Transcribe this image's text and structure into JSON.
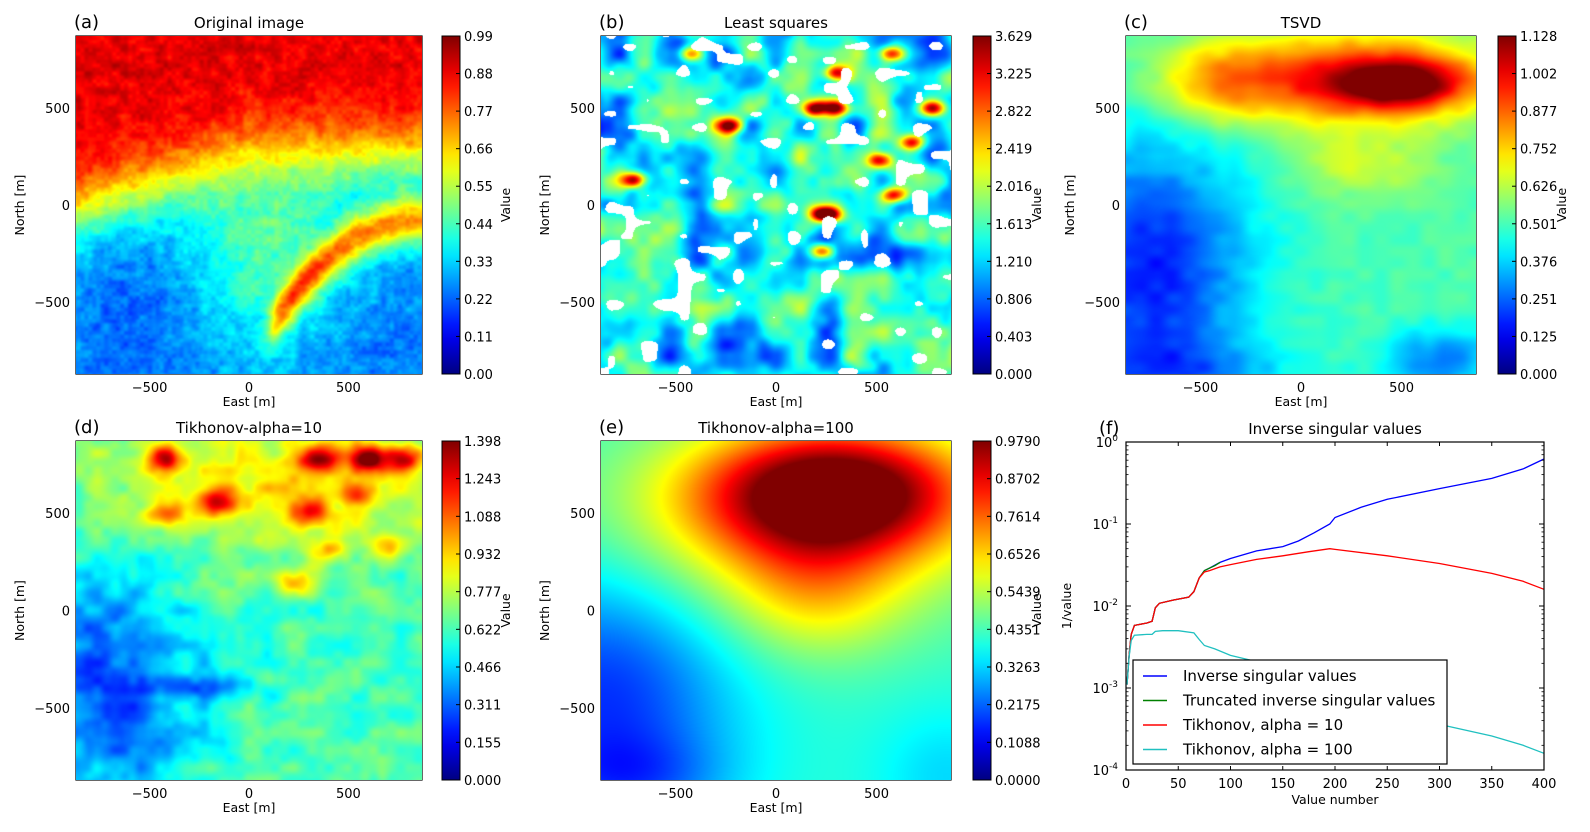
{
  "figure": {
    "panels": [
      {
        "id": "a",
        "panel_label": "(a)",
        "title": "Original image",
        "xlabel": "East [m]",
        "ylabel": "North [m]",
        "colorbar_label": "Value",
        "colorbar_ticks": [
          "0.00",
          "0.11",
          "0.22",
          "0.33",
          "0.44",
          "0.55",
          "0.66",
          "0.77",
          "0.88",
          "0.99"
        ],
        "vmin": 0.0,
        "vmax": 0.99,
        "pattern": "original"
      },
      {
        "id": "b",
        "panel_label": "(b)",
        "title": "Least squares",
        "xlabel": "East [m]",
        "ylabel": "North [m]",
        "colorbar_label": "Value",
        "colorbar_ticks": [
          "0.000",
          "0.403",
          "0.806",
          "1.210",
          "1.613",
          "2.016",
          "2.419",
          "2.822",
          "3.225",
          "3.629"
        ],
        "vmin": 0.0,
        "vmax": 3.629,
        "pattern": "leastsquares"
      },
      {
        "id": "c",
        "panel_label": "(c)",
        "title": "TSVD",
        "xlabel": "East [m]",
        "ylabel": "North [m]",
        "colorbar_label": "Value",
        "colorbar_ticks": [
          "0.000",
          "0.125",
          "0.251",
          "0.376",
          "0.501",
          "0.626",
          "0.752",
          "0.877",
          "1.002",
          "1.128"
        ],
        "vmin": 0.0,
        "vmax": 1.128,
        "pattern": "tsvd"
      },
      {
        "id": "d",
        "panel_label": "(d)",
        "title": "Tikhonov-alpha=10",
        "xlabel": "East [m]",
        "ylabel": "North [m]",
        "colorbar_label": "Value",
        "colorbar_ticks": [
          "0.000",
          "0.155",
          "0.311",
          "0.466",
          "0.622",
          "0.777",
          "0.932",
          "1.088",
          "1.243",
          "1.398"
        ],
        "vmin": 0.0,
        "vmax": 1.398,
        "pattern": "tik10"
      },
      {
        "id": "e",
        "panel_label": "(e)",
        "title": "Tikhonov-alpha=100",
        "xlabel": "East [m]",
        "ylabel": "North [m]",
        "colorbar_label": "Value",
        "colorbar_ticks": [
          "0.0000",
          "0.1088",
          "0.2175",
          "0.3263",
          "0.4351",
          "0.5439",
          "0.6526",
          "0.7614",
          "0.8702",
          "0.9790"
        ],
        "vmin": 0.0,
        "vmax": 0.979,
        "pattern": "tik100"
      }
    ],
    "map_axes": {
      "x_ticks": [
        "−500",
        "0",
        "500"
      ],
      "x_tick_values": [
        -500,
        0,
        500
      ],
      "y_ticks": [
        "−500",
        "0",
        "500"
      ],
      "y_tick_values": [
        -500,
        0,
        500
      ],
      "xlim": [
        -870,
        870
      ],
      "ylim": [
        -870,
        870
      ]
    }
  },
  "chart_data": [
    {
      "type": "heatmap",
      "title": "Original image",
      "xlabel": "East [m]",
      "ylabel": "North [m]",
      "xlim": [
        -870,
        870
      ],
      "ylim": [
        -870,
        870
      ],
      "colorbar": {
        "label": "Value",
        "min": 0.0,
        "max": 0.99,
        "colormap": "jet"
      },
      "description": "High values (0.8-0.99) across the north (y>300); low values (~0.25) in the south-west; a curved band of high values (0.7-0.85) from east ~800,y~-100 to x~250,y~-550"
    },
    {
      "type": "heatmap",
      "title": "Least squares",
      "xlabel": "East [m]",
      "ylabel": "North [m]",
      "xlim": [
        -870,
        870
      ],
      "ylim": [
        -870,
        870
      ],
      "colorbar": {
        "label": "Value",
        "min": 0.0,
        "max": 3.629,
        "colormap": "jet"
      },
      "description": "Noisy triangulated field mostly 0.4-1.6 with isolated peaks up to ~3.6 and white (masked/negative) patches"
    },
    {
      "type": "heatmap",
      "title": "TSVD",
      "xlabel": "East [m]",
      "ylabel": "North [m]",
      "xlim": [
        -870,
        870
      ],
      "ylim": [
        -870,
        870
      ],
      "colorbar": {
        "label": "Value",
        "min": 0.0,
        "max": 1.128,
        "colormap": "jet"
      },
      "description": "Maximum ~1.1 near (500, 600); broad high band y 400-800; low (~0.2) in west/south-west"
    },
    {
      "type": "heatmap",
      "title": "Tikhonov-alpha=10",
      "xlabel": "East [m]",
      "ylabel": "North [m]",
      "xlim": [
        -870,
        870
      ],
      "ylim": [
        -870,
        870
      ],
      "colorbar": {
        "label": "Value",
        "min": 0.0,
        "max": 1.398,
        "colormap": "jet"
      },
      "description": "Patchy field, peaks ~1.3 along y~800 near x=-400, 300, 600; low ~0.2 in south-west"
    },
    {
      "type": "heatmap",
      "title": "Tikhonov-alpha=100",
      "xlabel": "East [m]",
      "ylabel": "North [m]",
      "xlim": [
        -870,
        870
      ],
      "ylim": [
        -870,
        870
      ],
      "colorbar": {
        "label": "Value",
        "min": 0.0,
        "max": 0.979,
        "colormap": "jet"
      },
      "description": "Smooth field with maximum ~0.98 near (300, 600); decreasing toward south-west minimum ~0.1"
    },
    {
      "type": "line",
      "title": "Inverse singular values",
      "xlabel": "Value number",
      "ylabel": "1/value",
      "yscale": "log",
      "xlim": [
        0,
        400
      ],
      "ylim": [
        0.0001,
        1
      ],
      "x_ticks": [
        "0",
        "50",
        "100",
        "150",
        "200",
        "250",
        "300",
        "350",
        "400"
      ],
      "y_ticks": [
        {
          "base": "10",
          "exp": "0",
          "value": 1
        },
        {
          "base": "10",
          "exp": "-1",
          "value": 0.1
        },
        {
          "base": "10",
          "exp": "-2",
          "value": 0.01
        },
        {
          "base": "10",
          "exp": "-3",
          "value": 0.001
        },
        {
          "base": "10",
          "exp": "-4",
          "value": 0.0001
        }
      ],
      "legend_position": "lower-left",
      "series": [
        {
          "name": "Inverse singular values",
          "color": "#0000ff",
          "x": [
            1,
            3,
            5,
            8,
            20,
            25,
            28,
            32,
            45,
            60,
            65,
            70,
            75,
            80,
            90,
            100,
            125,
            150,
            165,
            180,
            195,
            200,
            225,
            250,
            300,
            350,
            380,
            400
          ],
          "y": [
            0.0011,
            0.0025,
            0.0045,
            0.0058,
            0.0062,
            0.0065,
            0.0095,
            0.0108,
            0.0118,
            0.0128,
            0.015,
            0.022,
            0.027,
            0.029,
            0.034,
            0.038,
            0.047,
            0.053,
            0.062,
            0.078,
            0.1,
            0.12,
            0.16,
            0.2,
            0.27,
            0.36,
            0.47,
            0.62
          ]
        },
        {
          "name": "Truncated inverse singular values",
          "color": "#008000",
          "x": [
            1,
            3,
            5,
            8,
            20,
            25,
            28,
            32,
            45,
            60,
            65,
            70,
            75,
            80,
            85,
            90
          ],
          "y": [
            0.0011,
            0.0025,
            0.0045,
            0.0058,
            0.0062,
            0.0065,
            0.0095,
            0.0108,
            0.0118,
            0.0128,
            0.015,
            0.022,
            0.027,
            0.029,
            0.031,
            0.034
          ]
        },
        {
          "name": "Tikhonov, alpha = 10",
          "color": "#ff0000",
          "x": [
            1,
            3,
            5,
            8,
            20,
            25,
            28,
            32,
            45,
            60,
            65,
            70,
            75,
            80,
            90,
            100,
            125,
            150,
            175,
            195,
            200,
            250,
            300,
            350,
            380,
            400
          ],
          "y": [
            0.0011,
            0.0025,
            0.0045,
            0.0058,
            0.0062,
            0.0065,
            0.0095,
            0.0108,
            0.0118,
            0.0128,
            0.015,
            0.022,
            0.026,
            0.027,
            0.03,
            0.032,
            0.037,
            0.041,
            0.046,
            0.05,
            0.049,
            0.041,
            0.033,
            0.025,
            0.02,
            0.016
          ]
        },
        {
          "name": "Tikhonov, alpha = 100",
          "color": "#20c0c0",
          "x": [
            1,
            3,
            5,
            8,
            20,
            25,
            28,
            35,
            50,
            65,
            70,
            75,
            85,
            100,
            125,
            150,
            200,
            250,
            300,
            350,
            380,
            400
          ],
          "y": [
            0.0011,
            0.0024,
            0.0038,
            0.0044,
            0.0045,
            0.0045,
            0.0049,
            0.005,
            0.005,
            0.0047,
            0.0039,
            0.0033,
            0.003,
            0.0025,
            0.0021,
            0.0016,
            0.0009,
            0.00055,
            0.00036,
            0.00026,
            0.0002,
            0.00016
          ]
        }
      ]
    }
  ]
}
